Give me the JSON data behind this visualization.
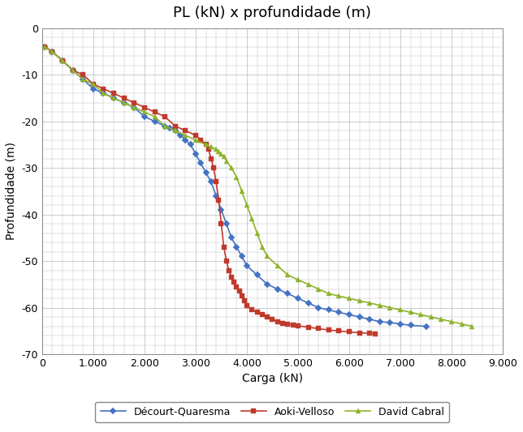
{
  "title": "PL (kN) x profundidade (m)",
  "xlabel": "Carga (kN)",
  "ylabel": "Profundidade (m)",
  "xlim": [
    0,
    9000
  ],
  "ylim": [
    -70,
    0
  ],
  "xticks": [
    0,
    1000,
    2000,
    3000,
    4000,
    5000,
    6000,
    7000,
    8000,
    9000
  ],
  "yticks": [
    0,
    -10,
    -20,
    -30,
    -40,
    -50,
    -60,
    -70
  ],
  "background_color": "#ffffff",
  "grid_color": "#b8b8b8",
  "decourt_quaresma": {
    "label": "Décourt-Quaresma",
    "color": "#4472C4",
    "marker": "D",
    "markersize": 4,
    "x": [
      50,
      200,
      400,
      600,
      800,
      1000,
      1200,
      1400,
      1600,
      1800,
      2000,
      2200,
      2400,
      2500,
      2600,
      2700,
      2800,
      2900,
      3000,
      3100,
      3200,
      3300,
      3400,
      3500,
      3600,
      3700,
      3800,
      3900,
      4000,
      4200,
      4400,
      4600,
      4800,
      5000,
      5200,
      5400,
      5600,
      5800,
      6000,
      6200,
      6400,
      6600,
      6800,
      7000,
      7200,
      7500
    ],
    "y": [
      -4,
      -5,
      -7,
      -9,
      -11,
      -13,
      -14,
      -15,
      -16,
      -17,
      -19,
      -20,
      -21,
      -21.5,
      -22,
      -23,
      -24,
      -25,
      -27,
      -29,
      -31,
      -33,
      -36,
      -39,
      -42,
      -45,
      -47,
      -49,
      -51,
      -53,
      -55,
      -56,
      -57,
      -58,
      -59,
      -60,
      -60.5,
      -61,
      -61.5,
      -62,
      -62.5,
      -63,
      -63.2,
      -63.5,
      -63.8,
      -64
    ]
  },
  "aoki_velloso": {
    "label": "Aoki-Velloso",
    "color": "#C0392B",
    "marker": "s",
    "markersize": 4,
    "x": [
      50,
      200,
      400,
      600,
      800,
      1000,
      1200,
      1400,
      1600,
      1800,
      2000,
      2200,
      2400,
      2600,
      2800,
      3000,
      3100,
      3200,
      3250,
      3300,
      3350,
      3400,
      3450,
      3500,
      3550,
      3600,
      3650,
      3700,
      3750,
      3800,
      3850,
      3900,
      3950,
      4000,
      4100,
      4200,
      4300,
      4400,
      4500,
      4600,
      4700,
      4800,
      4900,
      5000,
      5200,
      5400,
      5600,
      5800,
      6000,
      6200,
      6400,
      6500
    ],
    "y": [
      -4,
      -5,
      -7,
      -9,
      -10,
      -12,
      -13,
      -14,
      -15,
      -16,
      -17,
      -18,
      -19,
      -21,
      -22,
      -23,
      -24,
      -25,
      -26,
      -28,
      -30,
      -33,
      -37,
      -42,
      -47,
      -50,
      -52,
      -53.5,
      -54.5,
      -55.5,
      -56.5,
      -57.5,
      -58.5,
      -59.5,
      -60.5,
      -61,
      -61.5,
      -62,
      -62.5,
      -63,
      -63.3,
      -63.5,
      -63.7,
      -63.9,
      -64.2,
      -64.5,
      -64.8,
      -65,
      -65.2,
      -65.4,
      -65.5,
      -65.6
    ]
  },
  "david_cabral": {
    "label": "David Cabral",
    "color": "#8DB32A",
    "marker": "^",
    "markersize": 4,
    "x": [
      50,
      200,
      400,
      600,
      800,
      1000,
      1200,
      1400,
      1600,
      1800,
      2000,
      2200,
      2400,
      2600,
      2800,
      3000,
      3200,
      3300,
      3400,
      3450,
      3500,
      3550,
      3600,
      3700,
      3800,
      3900,
      4000,
      4100,
      4200,
      4300,
      4400,
      4600,
      4800,
      5000,
      5200,
      5400,
      5600,
      5800,
      6000,
      6200,
      6400,
      6600,
      6800,
      7000,
      7200,
      7400,
      7600,
      7800,
      8000,
      8200,
      8400
    ],
    "y": [
      -4,
      -5,
      -7,
      -9,
      -11,
      -12,
      -14,
      -15,
      -16,
      -17,
      -18,
      -19,
      -21,
      -22,
      -23,
      -24,
      -25,
      -25.5,
      -26,
      -26.5,
      -27,
      -27.5,
      -28.5,
      -30,
      -32,
      -35,
      -38,
      -41,
      -44,
      -47,
      -49,
      -51,
      -53,
      -54,
      -55,
      -56,
      -57,
      -57.5,
      -58,
      -58.5,
      -59,
      -59.5,
      -60,
      -60.5,
      -61,
      -61.5,
      -62,
      -62.5,
      -63,
      -63.5,
      -64
    ]
  }
}
